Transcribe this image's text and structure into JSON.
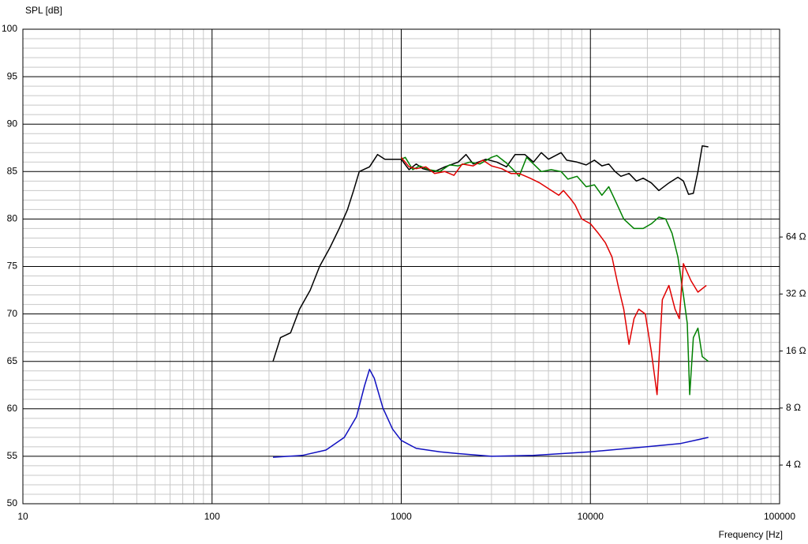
{
  "chart_data": {
    "type": "line",
    "y_label": "SPL [dB]",
    "x_label": "Frequency [Hz]",
    "xscale": "log",
    "y2scale": "log",
    "grid": true,
    "xlim": [
      10,
      100000
    ],
    "xticks": [
      10,
      100,
      1000,
      10000,
      100000
    ],
    "ylim": [
      50,
      100
    ],
    "yticks": [
      50,
      55,
      60,
      65,
      70,
      75,
      80,
      85,
      90,
      95,
      100
    ],
    "y2lim": [
      2.5,
      800
    ],
    "y2ticks": [
      {
        "value": 4,
        "label": "4 Ω"
      },
      {
        "value": 8,
        "label": "8 Ω"
      },
      {
        "value": 16,
        "label": "16 Ω"
      },
      {
        "value": 32,
        "label": "32 Ω"
      },
      {
        "value": 64,
        "label": "64 Ω"
      }
    ],
    "series": [
      {
        "color": "#000000",
        "x": [
          210,
          230,
          260,
          290,
          330,
          370,
          420,
          470,
          520,
          560,
          600,
          680,
          750,
          820,
          1000,
          1100,
          1200,
          1300,
          1500,
          1700,
          2000,
          2200,
          2400,
          2800,
          3200,
          3600,
          4000,
          4500,
          5000,
          5500,
          6000,
          7000,
          7500,
          8500,
          9500,
          10500,
          11500,
          12500,
          13500,
          14500,
          16000,
          17500,
          19000,
          21000,
          23000,
          26000,
          29000,
          31000,
          33000,
          35000,
          37000,
          39000,
          42000
        ],
        "values": [
          65,
          67.5,
          68,
          70.5,
          72.5,
          75,
          77,
          79,
          81,
          83,
          85,
          85.5,
          86.8,
          86.3,
          86.3,
          85.2,
          85.8,
          85.3,
          85.0,
          85.5,
          86.0,
          86.8,
          85.8,
          86.3,
          86.0,
          85.5,
          86.8,
          86.8,
          86.0,
          87.0,
          86.3,
          87.0,
          86.2,
          86.0,
          85.7,
          86.2,
          85.6,
          85.8,
          85.0,
          84.5,
          84.8,
          84.0,
          84.3,
          83.8,
          83.0,
          83.8,
          84.4,
          84.0,
          82.6,
          82.7,
          85.0,
          87.7,
          87.6
        ]
      },
      {
        "color": "#008000",
        "x": [
          1000,
          1050,
          1150,
          1250,
          1400,
          1600,
          1800,
          2000,
          2300,
          2600,
          3000,
          3200,
          3600,
          4000,
          4200,
          4600,
          5000,
          5500,
          6200,
          7000,
          7600,
          8500,
          9500,
          10500,
          11500,
          12500,
          13500,
          15000,
          17000,
          19000,
          21000,
          23000,
          25000,
          27000,
          29000,
          31000,
          32500,
          33500,
          35000,
          37000,
          39000,
          42000
        ],
        "values": [
          86.3,
          86.5,
          85.2,
          85.6,
          85.2,
          85.0,
          85.7,
          85.6,
          86.0,
          85.8,
          86.5,
          86.7,
          85.9,
          85.0,
          84.5,
          86.5,
          85.8,
          85.0,
          85.2,
          85.0,
          84.2,
          84.5,
          83.4,
          83.6,
          82.5,
          83.4,
          82.0,
          80.0,
          79.0,
          79.0,
          79.5,
          80.2,
          80.0,
          78.5,
          76.0,
          72.0,
          69.0,
          61.5,
          67.5,
          68.5,
          65.5,
          65.0
        ]
      },
      {
        "color": "#e00000",
        "x": [
          1000,
          1100,
          1200,
          1350,
          1500,
          1700,
          1900,
          2100,
          2400,
          2700,
          3000,
          3400,
          3800,
          4200,
          4800,
          5400,
          6000,
          6800,
          7200,
          7800,
          8300,
          9000,
          10000,
          11000,
          12000,
          13000,
          14000,
          15000,
          16000,
          17000,
          18000,
          19500,
          21000,
          22500,
          24000,
          26000,
          28000,
          29500,
          31000,
          34000,
          37000,
          41000
        ],
        "values": [
          86.5,
          85.5,
          85.3,
          85.5,
          84.8,
          85.0,
          84.6,
          85.8,
          85.6,
          86.2,
          85.6,
          85.3,
          84.8,
          84.8,
          84.3,
          83.8,
          83.2,
          82.5,
          83.0,
          82.2,
          81.5,
          80.0,
          79.5,
          78.5,
          77.5,
          76.0,
          73.0,
          70.5,
          66.8,
          69.5,
          70.5,
          70.0,
          66.0,
          61.5,
          71.5,
          73.0,
          70.5,
          69.5,
          75.3,
          73.5,
          72.3,
          73.0
        ]
      },
      {
        "color": "#1010c0",
        "axis": "y2",
        "x": [
          210,
          300,
          400,
          500,
          580,
          640,
          680,
          720,
          800,
          900,
          1000,
          1200,
          1600,
          2000,
          3000,
          5000,
          10000,
          20000,
          30000,
          42000
        ],
        "values": [
          4.4,
          4.5,
          4.8,
          5.6,
          7.2,
          10.5,
          12.8,
          11.5,
          8.0,
          6.2,
          5.4,
          4.9,
          4.7,
          4.6,
          4.45,
          4.5,
          4.7,
          5.0,
          5.2,
          5.6
        ]
      }
    ]
  }
}
